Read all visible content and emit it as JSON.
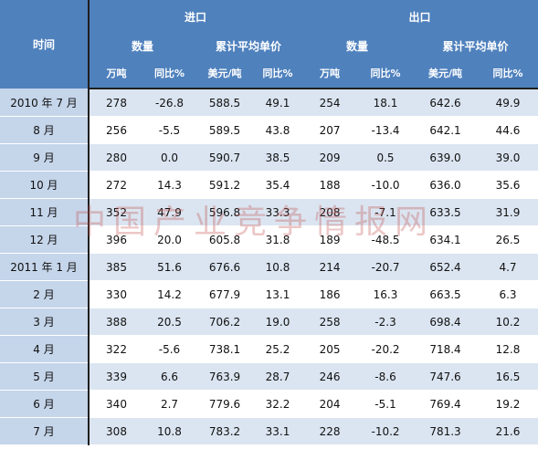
{
  "header": {
    "time_label": "时间",
    "import_label": "进口",
    "export_label": "出口",
    "quantity_label": "数量",
    "avg_price_label": "累计平均单价",
    "units": {
      "wan_ton": "万吨",
      "yoy_pct_import_qty": "同比%",
      "usd_per_ton": "美元/吨",
      "yoy_pct": "同比%"
    }
  },
  "rows": [
    {
      "month": "2010 年 7 月",
      "imp_qty": "278",
      "imp_qty_yoy": "-26.8",
      "imp_price": "588.5",
      "imp_price_yoy": "49.1",
      "exp_qty": "254",
      "exp_qty_yoy": "18.1",
      "exp_price": "642.6",
      "exp_price_yoy": "49.9"
    },
    {
      "month": "8 月",
      "imp_qty": "256",
      "imp_qty_yoy": "-5.5",
      "imp_price": "589.5",
      "imp_price_yoy": "43.8",
      "exp_qty": "207",
      "exp_qty_yoy": "-13.4",
      "exp_price": "642.1",
      "exp_price_yoy": "44.6"
    },
    {
      "month": "9 月",
      "imp_qty": "280",
      "imp_qty_yoy": "0.0",
      "imp_price": "590.7",
      "imp_price_yoy": "38.5",
      "exp_qty": "209",
      "exp_qty_yoy": "0.5",
      "exp_price": "639.0",
      "exp_price_yoy": "39.0"
    },
    {
      "month": "10 月",
      "imp_qty": "272",
      "imp_qty_yoy": "14.3",
      "imp_price": "591.2",
      "imp_price_yoy": "35.4",
      "exp_qty": "188",
      "exp_qty_yoy": "-10.0",
      "exp_price": "636.0",
      "exp_price_yoy": "35.6"
    },
    {
      "month": "11 月",
      "imp_qty": "352",
      "imp_qty_yoy": "47.9",
      "imp_price": "596.8",
      "imp_price_yoy": "33.3",
      "exp_qty": "208",
      "exp_qty_yoy": "-7.1",
      "exp_price": "633.5",
      "exp_price_yoy": "31.9"
    },
    {
      "month": "12 月",
      "imp_qty": "396",
      "imp_qty_yoy": "20.0",
      "imp_price": "605.8",
      "imp_price_yoy": "31.8",
      "exp_qty": "189",
      "exp_qty_yoy": "-48.5",
      "exp_price": "634.1",
      "exp_price_yoy": "26.5"
    },
    {
      "month": "2011 年 1 月",
      "imp_qty": "385",
      "imp_qty_yoy": "51.6",
      "imp_price": "676.6",
      "imp_price_yoy": "10.8",
      "exp_qty": "214",
      "exp_qty_yoy": "-20.7",
      "exp_price": "652.4",
      "exp_price_yoy": "4.7"
    },
    {
      "month": "2 月",
      "imp_qty": "330",
      "imp_qty_yoy": "14.2",
      "imp_price": "677.9",
      "imp_price_yoy": "13.1",
      "exp_qty": "186",
      "exp_qty_yoy": "16.3",
      "exp_price": "663.5",
      "exp_price_yoy": "6.3"
    },
    {
      "month": "3 月",
      "imp_qty": "388",
      "imp_qty_yoy": "20.5",
      "imp_price": "706.2",
      "imp_price_yoy": "19.0",
      "exp_qty": "258",
      "exp_qty_yoy": "-2.3",
      "exp_price": "698.4",
      "exp_price_yoy": "10.2"
    },
    {
      "month": "4 月",
      "imp_qty": "322",
      "imp_qty_yoy": "-5.6",
      "imp_price": "738.1",
      "imp_price_yoy": "25.2",
      "exp_qty": "205",
      "exp_qty_yoy": "-20.2",
      "exp_price": "718.4",
      "exp_price_yoy": "12.8"
    },
    {
      "month": "5 月",
      "imp_qty": "339",
      "imp_qty_yoy": "6.6",
      "imp_price": "763.9",
      "imp_price_yoy": "28.7",
      "exp_qty": "246",
      "exp_qty_yoy": "-8.6",
      "exp_price": "747.6",
      "exp_price_yoy": "16.5"
    },
    {
      "month": "6 月",
      "imp_qty": "340",
      "imp_qty_yoy": "2.7",
      "imp_price": "779.6",
      "imp_price_yoy": "32.2",
      "exp_qty": "204",
      "exp_qty_yoy": "-5.1",
      "exp_price": "769.4",
      "exp_price_yoy": "19.2"
    },
    {
      "month": "7 月",
      "imp_qty": "308",
      "imp_qty_yoy": "10.8",
      "imp_price": "783.2",
      "imp_price_yoy": "33.1",
      "exp_qty": "228",
      "exp_qty_yoy": "-10.2",
      "exp_price": "781.3",
      "exp_price_yoy": "21.6"
    }
  ],
  "watermark": "中国产业竞争情报网",
  "colors": {
    "header_bg": "#4f81bd",
    "month_bg": "#c5d5ea",
    "band_bg": "#dbe5f1",
    "watermark": "#c0504d"
  }
}
